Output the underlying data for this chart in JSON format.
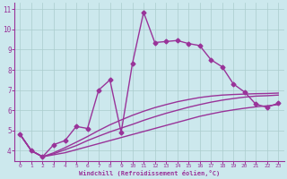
{
  "xlabel": "Windchill (Refroidissement éolien,°C)",
  "xlim": [
    -0.5,
    23.5
  ],
  "ylim": [
    3.5,
    11.3
  ],
  "xticks": [
    0,
    1,
    2,
    3,
    4,
    5,
    6,
    7,
    8,
    9,
    10,
    11,
    12,
    13,
    14,
    15,
    16,
    17,
    18,
    19,
    20,
    21,
    22,
    23
  ],
  "yticks": [
    4,
    5,
    6,
    7,
    8,
    9,
    10,
    11
  ],
  "bg_color": "#cce8ed",
  "line_color": "#993399",
  "line_width": 1.0,
  "marker": "D",
  "marker_size": 2.5,
  "series1_x": [
    0,
    1,
    2,
    3,
    4,
    5,
    6,
    7,
    8,
    9,
    10,
    11,
    12,
    13,
    14,
    15,
    16,
    17,
    18,
    19,
    20,
    21,
    22,
    23
  ],
  "series1_y": [
    4.8,
    4.0,
    3.7,
    4.3,
    4.5,
    5.2,
    5.1,
    7.0,
    7.5,
    4.9,
    8.3,
    10.85,
    9.35,
    9.4,
    9.45,
    9.3,
    9.2,
    8.5,
    8.15,
    7.3,
    6.9,
    6.3,
    6.15,
    6.35
  ],
  "series2_x": [
    0,
    1,
    2,
    3,
    4,
    5,
    6,
    7,
    8,
    9,
    10,
    11,
    12,
    13,
    14,
    15,
    16,
    17,
    18,
    19,
    20,
    21,
    22,
    23
  ],
  "series2_y": [
    4.8,
    4.0,
    3.7,
    3.8,
    3.9,
    4.05,
    4.2,
    4.35,
    4.5,
    4.65,
    4.8,
    4.95,
    5.1,
    5.25,
    5.4,
    5.55,
    5.7,
    5.82,
    5.93,
    6.02,
    6.1,
    6.17,
    6.22,
    6.28
  ],
  "series3_x": [
    0,
    1,
    2,
    3,
    4,
    5,
    6,
    7,
    8,
    9,
    10,
    11,
    12,
    13,
    14,
    15,
    16,
    17,
    18,
    19,
    20,
    21,
    22,
    23
  ],
  "series3_y": [
    4.8,
    4.0,
    3.7,
    3.85,
    4.05,
    4.25,
    4.5,
    4.72,
    4.93,
    5.12,
    5.3,
    5.5,
    5.68,
    5.85,
    6.0,
    6.15,
    6.28,
    6.4,
    6.5,
    6.58,
    6.65,
    6.7,
    6.72,
    6.75
  ],
  "series4_x": [
    0,
    1,
    2,
    3,
    4,
    5,
    6,
    7,
    8,
    9,
    10,
    11,
    12,
    13,
    14,
    15,
    16,
    17,
    18,
    19,
    20,
    21,
    22,
    23
  ],
  "series4_y": [
    4.8,
    4.0,
    3.7,
    3.9,
    4.15,
    4.42,
    4.7,
    5.0,
    5.28,
    5.52,
    5.75,
    5.95,
    6.13,
    6.28,
    6.42,
    6.53,
    6.63,
    6.7,
    6.75,
    6.78,
    6.8,
    6.82,
    6.83,
    6.85
  ]
}
